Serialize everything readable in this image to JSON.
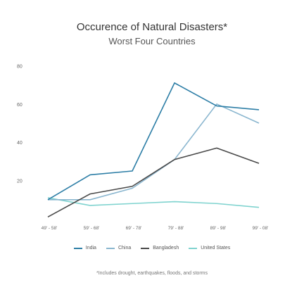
{
  "title": "Occurence of Natural Disasters*",
  "subtitle": "Worst Four Countries",
  "footnote": "*Includes drought, earthquakes, floods, and storms",
  "chart_data": {
    "type": "line",
    "title": "Occurence of Natural Disasters*",
    "subtitle": "Worst Four Countries",
    "categories": [
      "49' - 58'",
      "59' - 68'",
      "69' - 78'",
      "79' - 88'",
      "89' - 98'",
      "99' - 08'"
    ],
    "y_ticks": [
      20,
      40,
      60,
      80
    ],
    "ylim": [
      0,
      80
    ],
    "grid": false,
    "legend_position": "bottom",
    "series": [
      {
        "name": "India",
        "color": "#2d7ea6",
        "values": [
          10,
          23,
          25,
          71,
          59,
          57
        ]
      },
      {
        "name": "China",
        "color": "#8ab6cf",
        "values": [
          10,
          10,
          16,
          31,
          60,
          50
        ]
      },
      {
        "name": "Bangladesh",
        "color": "#4a4a4a",
        "values": [
          1,
          13,
          17,
          31,
          37,
          29
        ]
      },
      {
        "name": "United States",
        "color": "#7fd3cf",
        "values": [
          11,
          7,
          8,
          9,
          8,
          6
        ]
      }
    ]
  }
}
